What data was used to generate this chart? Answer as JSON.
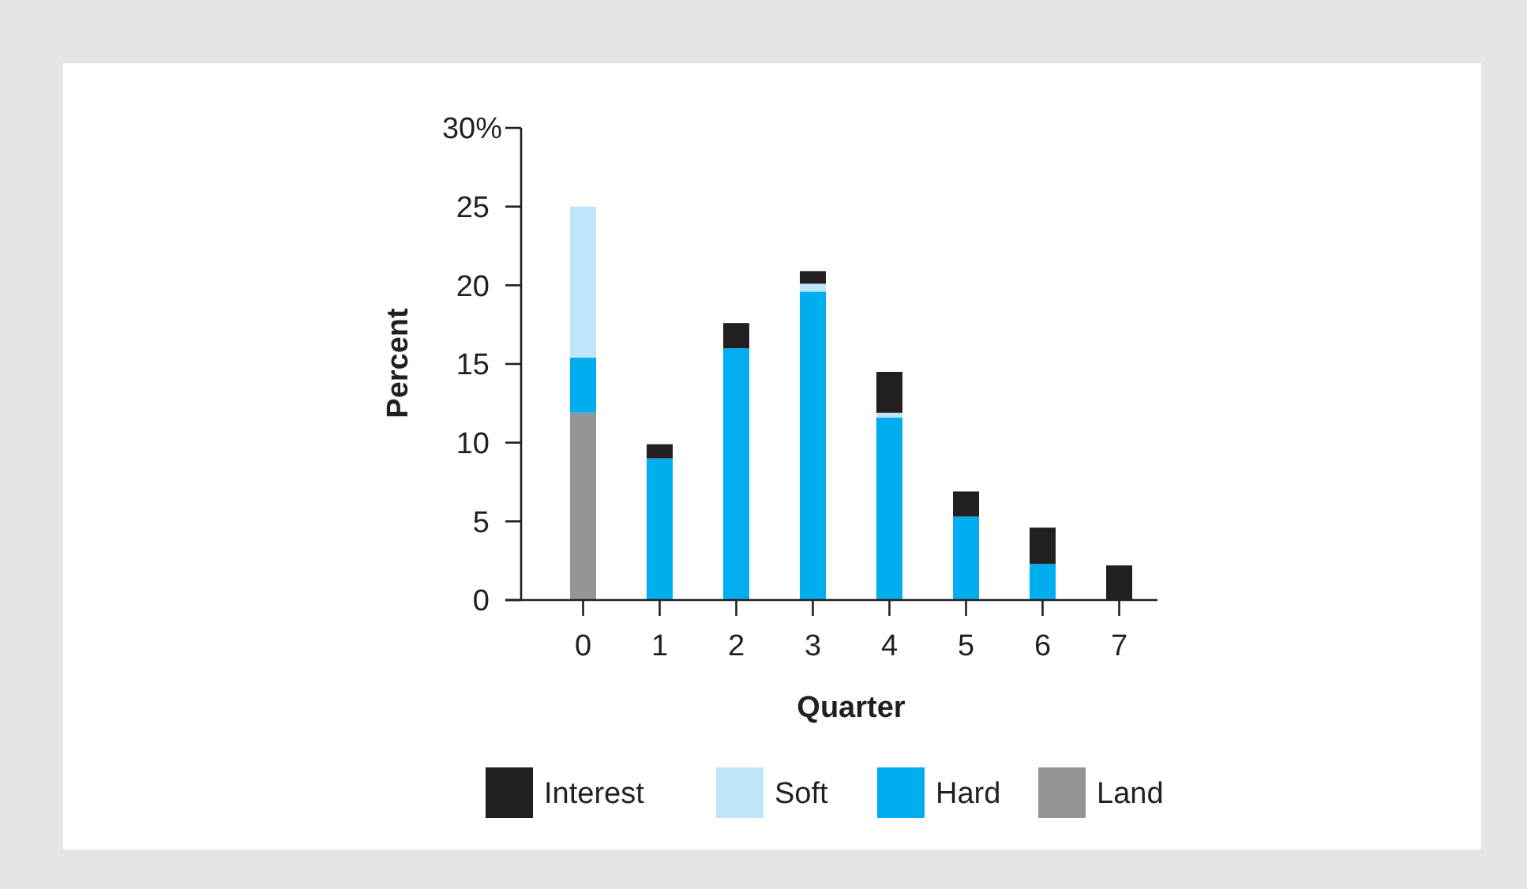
{
  "chart_data": {
    "type": "bar",
    "stacked": true,
    "xlabel": "Quarter",
    "ylabel": "Percent",
    "categories": [
      "0",
      "1",
      "2",
      "3",
      "4",
      "5",
      "6",
      "7"
    ],
    "series": [
      {
        "name": "Land",
        "color": "#939598",
        "values": [
          11.9,
          0,
          0,
          0,
          0,
          0,
          0,
          0
        ]
      },
      {
        "name": "Hard",
        "color": "#00aeef",
        "values": [
          3.5,
          9,
          16,
          19.6,
          11.6,
          5.3,
          2.3,
          0
        ]
      },
      {
        "name": "Soft",
        "color": "#bfe6f8",
        "values": [
          9.6,
          0,
          0,
          0.5,
          0.3,
          0,
          0,
          0
        ]
      },
      {
        "name": "Interest",
        "color": "#231f20",
        "values": [
          0,
          0.9,
          1.6,
          0.8,
          2.6,
          1.6,
          2.3,
          2.2
        ]
      }
    ],
    "ylim": [
      0,
      30
    ],
    "yticks": [
      0,
      5,
      10,
      15,
      20,
      25,
      {
        "value": 30,
        "label": "30%"
      }
    ],
    "legend": "bottom",
    "grid": false
  }
}
